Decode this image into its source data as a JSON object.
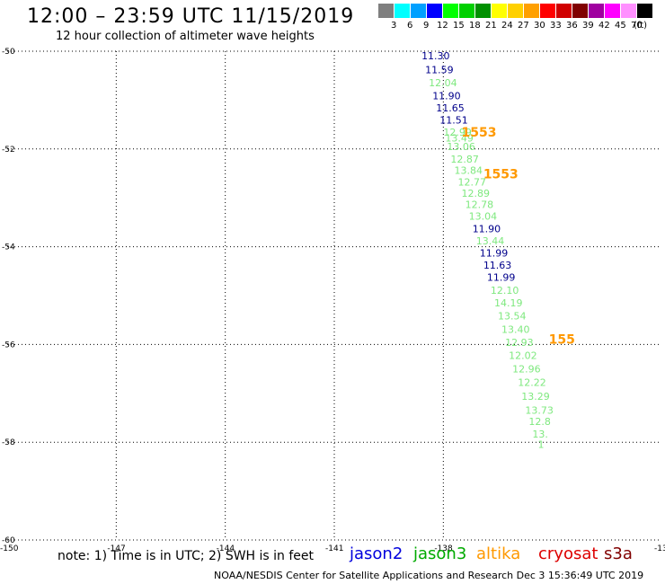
{
  "title": "12:00 – 23:59 UTC 11/15/2019",
  "subtitle": "12 hour collection of altimeter wave heights",
  "color_scale": {
    "labels": [
      "3",
      "6",
      "9",
      "12",
      "15",
      "18",
      "21",
      "24",
      "27",
      "30",
      "33",
      "36",
      "39",
      "42",
      "45",
      "70",
      "(ft)"
    ],
    "colors": [
      "#7f7f7f",
      "#00ffff",
      "#00a0ff",
      "#0000ff",
      "#00ff00",
      "#00d000",
      "#009000",
      "#ffff00",
      "#ffd000",
      "#ffa000",
      "#ff0000",
      "#d00000",
      "#800000",
      "#a000a0",
      "#ff00ff",
      "#ff90ff",
      "#000000"
    ]
  },
  "map": {
    "lon_range": [
      -150,
      -132
    ],
    "lat_range": [
      -60,
      -50
    ],
    "lat_ticks": [
      {
        "value": -50,
        "label": "-50"
      },
      {
        "value": -52,
        "label": "-52"
      },
      {
        "value": -54,
        "label": "-54"
      },
      {
        "value": -56,
        "label": "-56"
      },
      {
        "value": -58,
        "label": "-58"
      },
      {
        "value": -60,
        "label": "-60"
      }
    ],
    "lon_ticks": [
      {
        "value": -150,
        "label": "-150"
      },
      {
        "value": -147,
        "label": "-147"
      },
      {
        "value": -144,
        "label": "-144"
      },
      {
        "value": -141,
        "label": "-141"
      },
      {
        "value": -138,
        "label": "-138"
      },
      {
        "value": -132,
        "label": "-13"
      }
    ],
    "observations": [
      {
        "lon": -138.6,
        "lat": -50.17,
        "text": "11.30",
        "color": "#00008b"
      },
      {
        "lon": -138.5,
        "lat": -50.45,
        "text": "11.59",
        "color": "#00008b"
      },
      {
        "lon": -138.4,
        "lat": -50.72,
        "text": "12.04",
        "color": "#7ee87e"
      },
      {
        "lon": -138.3,
        "lat": -50.98,
        "text": "11.90",
        "color": "#00008b"
      },
      {
        "lon": -138.2,
        "lat": -51.23,
        "text": "11.65",
        "color": "#00008b"
      },
      {
        "lon": -138.1,
        "lat": -51.48,
        "text": "11.51",
        "color": "#00008b"
      },
      {
        "lon": -138.0,
        "lat": -51.73,
        "text": "12.99",
        "color": "#7ee87e"
      },
      {
        "lon": -137.95,
        "lat": -51.85,
        "text": "13.49",
        "color": "#7ee87e"
      },
      {
        "lon": -137.9,
        "lat": -52.02,
        "text": "13.06",
        "color": "#7ee87e"
      },
      {
        "lon": -137.8,
        "lat": -52.28,
        "text": "12.87",
        "color": "#7ee87e"
      },
      {
        "lon": -137.7,
        "lat": -52.51,
        "text": "13.84",
        "color": "#7ee87e"
      },
      {
        "lon": -137.6,
        "lat": -52.75,
        "text": "12.77",
        "color": "#7ee87e"
      },
      {
        "lon": -137.5,
        "lat": -52.98,
        "text": "12.89",
        "color": "#7ee87e"
      },
      {
        "lon": -137.4,
        "lat": -53.21,
        "text": "12.78",
        "color": "#7ee87e"
      },
      {
        "lon": -137.3,
        "lat": -53.45,
        "text": "13.04",
        "color": "#7ee87e"
      },
      {
        "lon": -137.2,
        "lat": -53.7,
        "text": "11.90",
        "color": "#00008b"
      },
      {
        "lon": -137.1,
        "lat": -53.95,
        "text": "13.44",
        "color": "#7ee87e"
      },
      {
        "lon": -137.0,
        "lat": -54.2,
        "text": "11.99",
        "color": "#00008b"
      },
      {
        "lon": -136.9,
        "lat": -54.45,
        "text": "11.63",
        "color": "#00008b"
      },
      {
        "lon": -136.8,
        "lat": -54.7,
        "text": "11.99",
        "color": "#00008b"
      },
      {
        "lon": -136.7,
        "lat": -54.96,
        "text": "12.10",
        "color": "#7ee87e"
      },
      {
        "lon": -136.6,
        "lat": -55.22,
        "text": "14.19",
        "color": "#7ee87e"
      },
      {
        "lon": -136.5,
        "lat": -55.49,
        "text": "13.54",
        "color": "#7ee87e"
      },
      {
        "lon": -136.4,
        "lat": -55.76,
        "text": "13.40",
        "color": "#7ee87e"
      },
      {
        "lon": -136.3,
        "lat": -56.03,
        "text": "12.93",
        "color": "#7ee87e"
      },
      {
        "lon": -136.2,
        "lat": -56.3,
        "text": "12.02",
        "color": "#7ee87e"
      },
      {
        "lon": -136.1,
        "lat": -56.57,
        "text": "12.96",
        "color": "#7ee87e"
      },
      {
        "lon": -135.95,
        "lat": -56.85,
        "text": "12.22",
        "color": "#7ee87e"
      },
      {
        "lon": -135.85,
        "lat": -57.13,
        "text": "13.29",
        "color": "#7ee87e"
      },
      {
        "lon": -135.75,
        "lat": -57.42,
        "text": "13.73",
        "color": "#7ee87e"
      },
      {
        "lon": -135.65,
        "lat": -57.65,
        "text": "12.8",
        "color": "#7ee87e"
      },
      {
        "lon": -135.55,
        "lat": -57.9,
        "text": "13.",
        "color": "#7ee87e"
      },
      {
        "lon": -135.4,
        "lat": -58.12,
        "text": "1",
        "color": "#7ee87e"
      }
    ],
    "time_labels": [
      {
        "lon": -137.5,
        "lat": -51.75,
        "text": "1553",
        "color": "#ff9900"
      },
      {
        "lon": -136.9,
        "lat": -52.6,
        "text": "1553",
        "color": "#ff9900"
      },
      {
        "lon": -135.1,
        "lat": -55.98,
        "text": "155",
        "color": "#ff9900"
      }
    ]
  },
  "note": "note: 1) Time is in UTC; 2) SWH is in feet",
  "satellites": [
    {
      "name": "jason2",
      "color": "#0000dd"
    },
    {
      "name": "jason3",
      "color": "#00aa00"
    },
    {
      "name": "altika",
      "color": "#ff9900"
    },
    {
      "name": "cryosat",
      "color": "#dd0000"
    },
    {
      "name": "s3a",
      "color": "#800000"
    }
  ],
  "credit": "NOAA/NESDIS Center for Satellite Applications and Research    Dec  3 15:36:49 UTC 2019"
}
